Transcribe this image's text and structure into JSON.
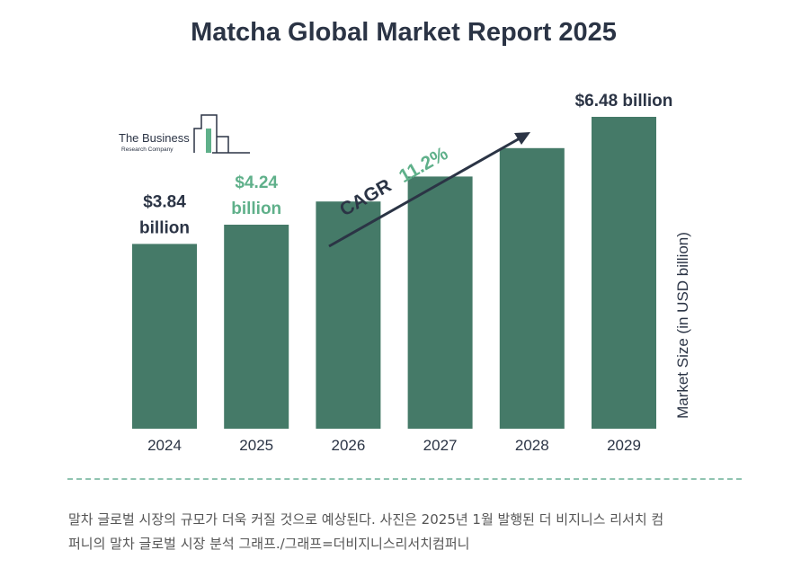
{
  "colors": {
    "bar": "#457a68",
    "accent": "#5fb08a",
    "text": "#2b3445",
    "axis_text": "#2b3445"
  },
  "logo": {
    "line1": "The Business",
    "line2": "Research Company"
  },
  "chart_data": {
    "type": "bar",
    "title": "Matcha Global Market Report 2025",
    "categories": [
      "2024",
      "2025",
      "2026",
      "2027",
      "2028",
      "2029"
    ],
    "values": [
      3.84,
      4.24,
      4.72,
      5.24,
      5.83,
      6.48
    ],
    "ylabel": "Market Size (in USD billion)",
    "value_labels": [
      {
        "category": "2024",
        "lines": [
          "$3.84",
          "billion"
        ],
        "color": "#2b3445"
      },
      {
        "category": "2025",
        "lines": [
          "$4.24",
          "billion"
        ],
        "color": "#5fb08a"
      },
      {
        "category": "2029",
        "lines": [
          "$6.48 billion"
        ],
        "color": "#2b3445"
      }
    ],
    "annotation": {
      "label": "CAGR",
      "value": "11.2%"
    },
    "grid": false,
    "legend": "none"
  },
  "caption": {
    "line1": "말차 글로벌 시장의 규모가 더욱 커질 것으로 예상된다. 사진은 2025년 1월 발행된 더 비지니스 리서치 컴",
    "line2": "퍼니의 말차 글로벌 시장 분석 그래프./그래프=더비지니스리서치컴퍼니"
  }
}
